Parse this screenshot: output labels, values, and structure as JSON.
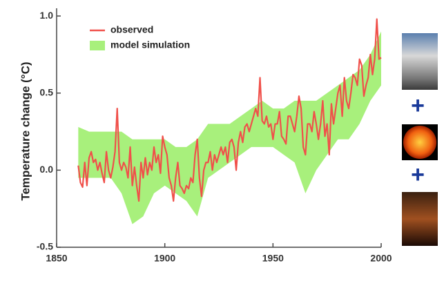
{
  "chart_data": {
    "type": "line",
    "y_label": "Temperature change (°C)",
    "xlim": [
      1850,
      2000
    ],
    "xticks": [
      1850,
      1900,
      1950,
      2000
    ],
    "ylim": [
      -0.5,
      1.05
    ],
    "yticks": [
      -0.5,
      {
        "value": 0,
        "label": "0.0"
      },
      0.5,
      {
        "value": 1,
        "label": "1.0"
      }
    ],
    "legend": "upper left",
    "series": [
      {
        "name": "observed",
        "color": "#f0504a",
        "x": [
          1860,
          1861,
          1862,
          1863,
          1864,
          1865,
          1866,
          1867,
          1868,
          1869,
          1870,
          1871,
          1872,
          1873,
          1874,
          1875,
          1876,
          1877,
          1878,
          1879,
          1880,
          1881,
          1882,
          1883,
          1884,
          1885,
          1886,
          1887,
          1888,
          1889,
          1890,
          1891,
          1892,
          1893,
          1894,
          1895,
          1896,
          1897,
          1898,
          1899,
          1900,
          1901,
          1902,
          1903,
          1904,
          1905,
          1906,
          1907,
          1908,
          1909,
          1910,
          1911,
          1912,
          1913,
          1914,
          1915,
          1916,
          1917,
          1918,
          1919,
          1920,
          1921,
          1922,
          1923,
          1924,
          1925,
          1926,
          1927,
          1928,
          1929,
          1930,
          1931,
          1932,
          1933,
          1934,
          1935,
          1936,
          1937,
          1938,
          1939,
          1940,
          1941,
          1942,
          1943,
          1944,
          1945,
          1946,
          1947,
          1948,
          1949,
          1950,
          1951,
          1952,
          1953,
          1954,
          1955,
          1956,
          1957,
          1958,
          1959,
          1960,
          1961,
          1962,
          1963,
          1964,
          1965,
          1966,
          1967,
          1968,
          1969,
          1970,
          1971,
          1972,
          1973,
          1974,
          1975,
          1976,
          1977,
          1978,
          1979,
          1980,
          1981,
          1982,
          1983,
          1984,
          1985,
          1986,
          1987,
          1988,
          1989,
          1990,
          1991,
          1992,
          1993,
          1994,
          1995,
          1996,
          1997,
          1998,
          1999,
          2000
        ],
        "values": [
          0.03,
          -0.08,
          -0.11,
          0.05,
          -0.1,
          0.08,
          0.12,
          0.05,
          0.07,
          0.0,
          0.05,
          -0.02,
          -0.08,
          0.12,
          0.0,
          -0.05,
          0.02,
          0.12,
          0.4,
          0.05,
          0.0,
          0.05,
          0.02,
          -0.05,
          0.15,
          -0.1,
          0.02,
          -0.1,
          -0.2,
          0.05,
          -0.05,
          0.08,
          -0.03,
          0.05,
          0.0,
          0.15,
          0.05,
          0.1,
          -0.02,
          0.22,
          0.15,
          0.1,
          -0.05,
          -0.1,
          -0.2,
          -0.05,
          0.05,
          -0.1,
          -0.12,
          -0.15,
          -0.1,
          -0.12,
          -0.05,
          -0.08,
          0.1,
          0.2,
          -0.05,
          -0.17,
          0.0,
          0.05,
          0.05,
          0.12,
          0.0,
          0.1,
          0.05,
          0.1,
          0.15,
          0.1,
          0.15,
          0.05,
          0.18,
          0.2,
          0.15,
          0.0,
          0.18,
          0.25,
          0.18,
          0.28,
          0.3,
          0.25,
          0.3,
          0.35,
          0.4,
          0.35,
          0.6,
          0.32,
          0.3,
          0.35,
          0.28,
          0.3,
          0.2,
          0.3,
          0.3,
          0.38,
          0.22,
          0.2,
          0.17,
          0.35,
          0.35,
          0.3,
          0.25,
          0.35,
          0.48,
          0.4,
          0.15,
          0.1,
          0.3,
          0.3,
          0.25,
          0.38,
          0.3,
          0.2,
          0.3,
          0.45,
          0.22,
          0.3,
          0.1,
          0.43,
          0.3,
          0.4,
          0.5,
          0.55,
          0.35,
          0.6,
          0.45,
          0.4,
          0.5,
          0.62,
          0.6,
          0.55,
          0.72,
          0.68,
          0.48,
          0.55,
          0.6,
          0.75,
          0.62,
          0.72,
          0.98,
          0.72,
          0.73
        ]
      },
      {
        "name": "model simulation",
        "color": "#a8f07c",
        "x": [
          1860,
          1865,
          1870,
          1875,
          1880,
          1885,
          1890,
          1895,
          1900,
          1905,
          1910,
          1915,
          1920,
          1925,
          1930,
          1935,
          1940,
          1945,
          1950,
          1955,
          1960,
          1965,
          1970,
          1975,
          1980,
          1985,
          1990,
          1995,
          2000
        ],
        "lower": [
          -0.05,
          -0.05,
          -0.05,
          -0.05,
          -0.15,
          -0.35,
          -0.3,
          -0.15,
          -0.1,
          -0.15,
          -0.2,
          -0.3,
          -0.05,
          0.0,
          0.05,
          0.1,
          0.15,
          0.15,
          0.15,
          0.1,
          0.05,
          -0.15,
          0.0,
          0.1,
          0.2,
          0.2,
          0.3,
          0.45,
          0.55
        ],
        "upper": [
          0.28,
          0.25,
          0.25,
          0.25,
          0.25,
          0.2,
          0.2,
          0.2,
          0.2,
          0.15,
          0.15,
          0.2,
          0.3,
          0.3,
          0.3,
          0.35,
          0.4,
          0.45,
          0.4,
          0.4,
          0.45,
          0.45,
          0.45,
          0.5,
          0.55,
          0.6,
          0.65,
          0.75,
          0.9
        ]
      }
    ]
  }
}
